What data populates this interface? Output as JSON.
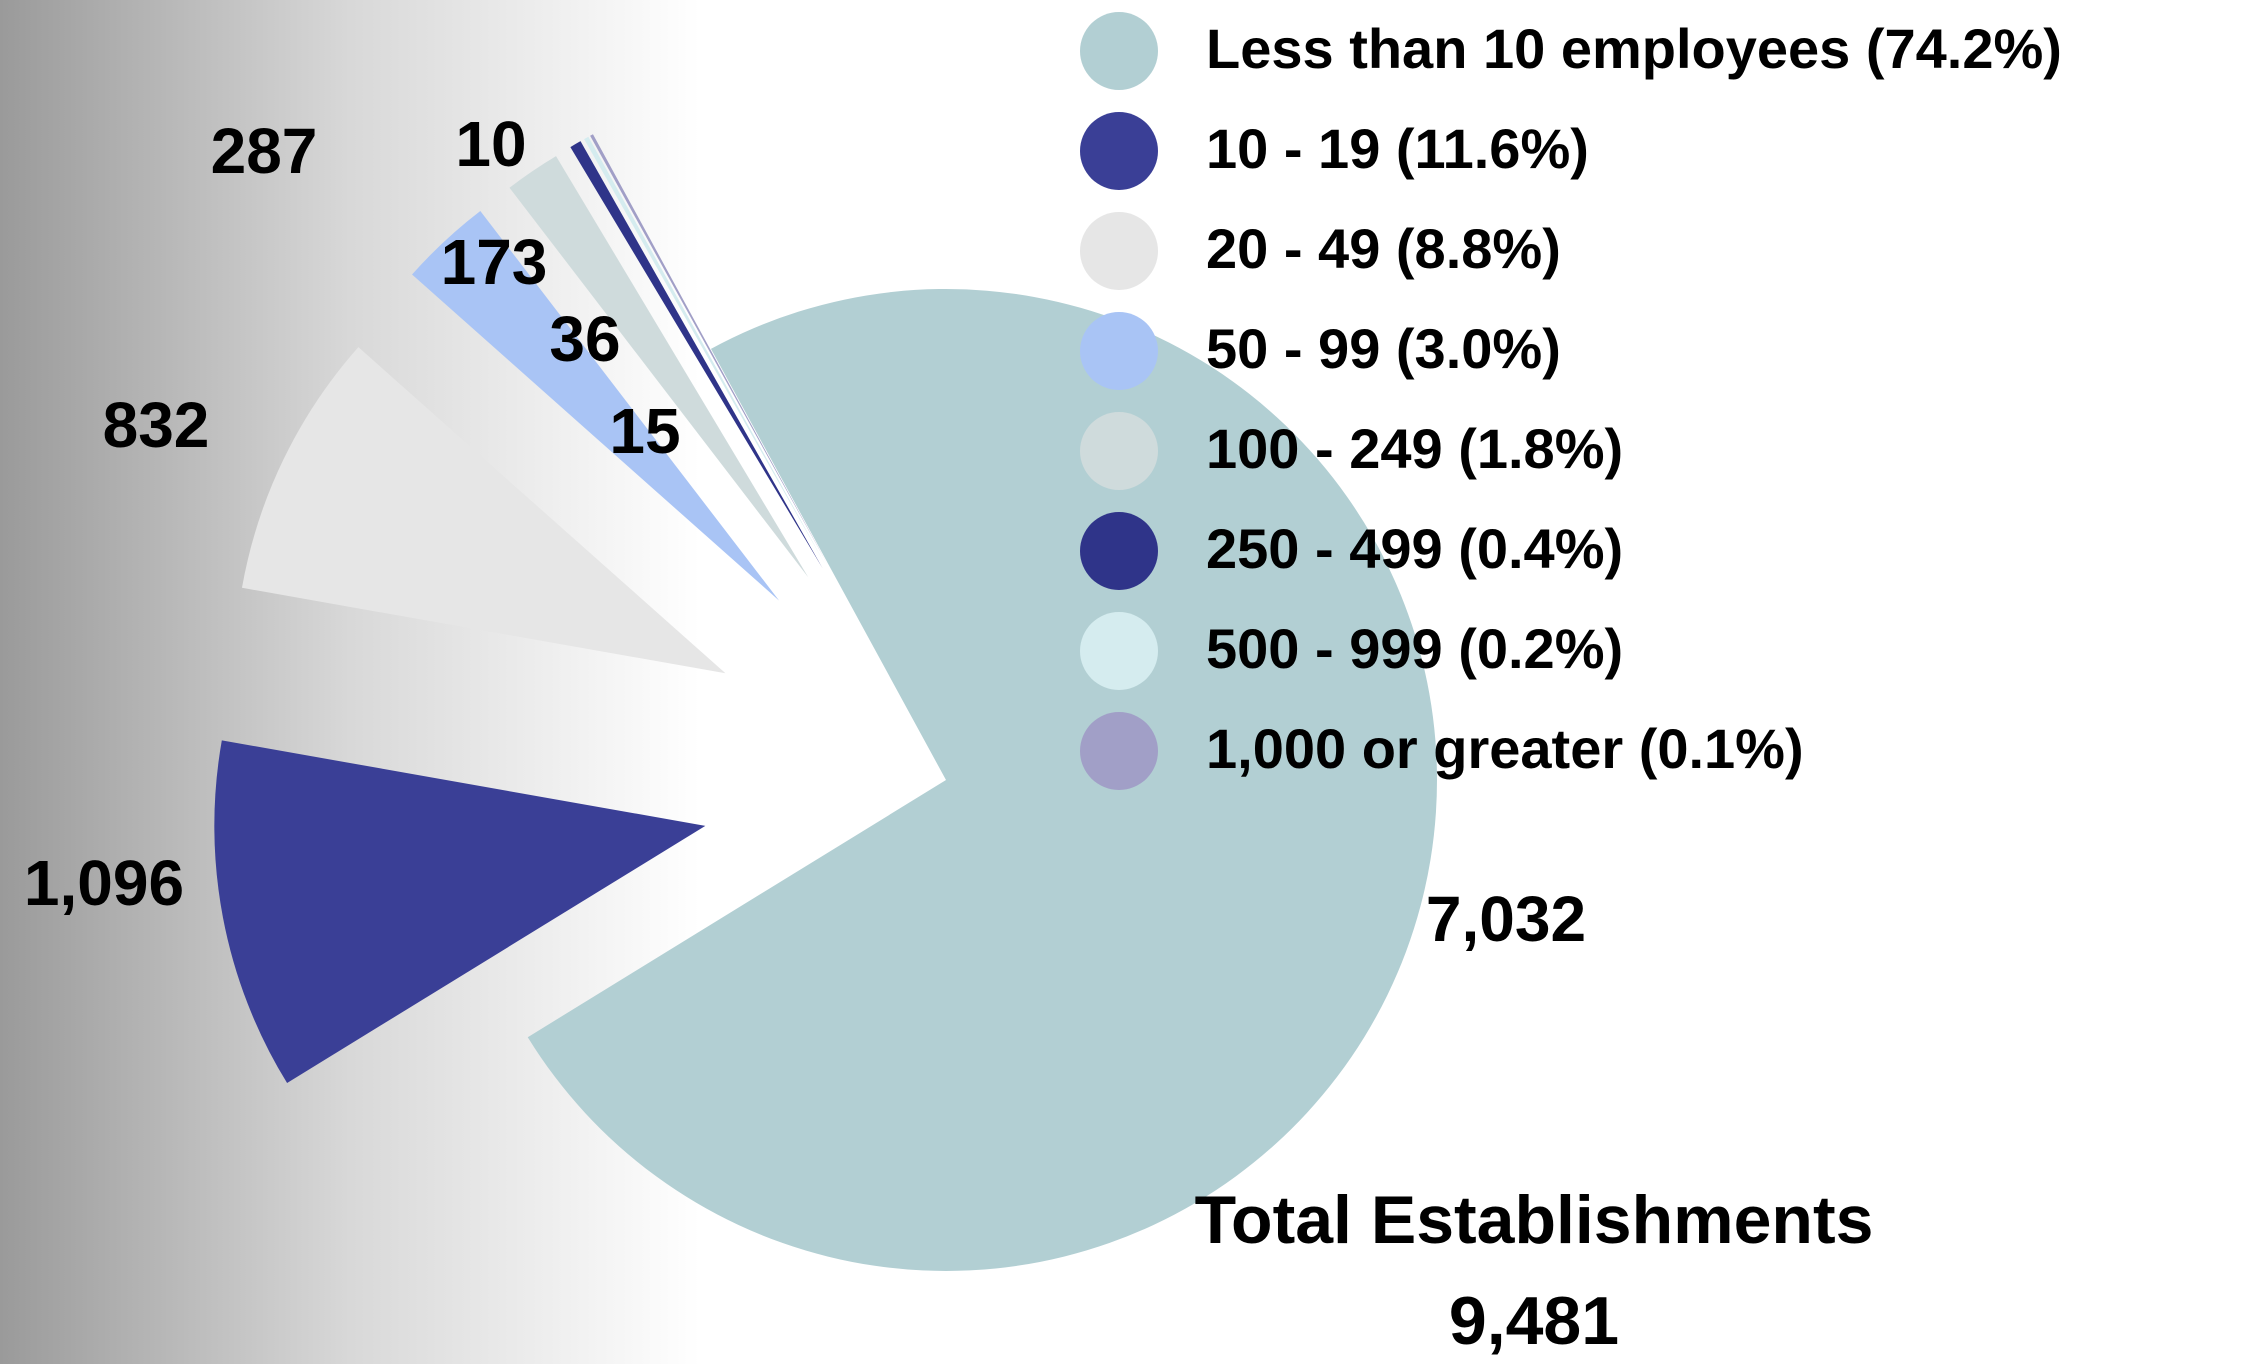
{
  "chart_data": {
    "type": "pie",
    "categories": [
      "Less than 10 employees (74.2%)",
      "10 - 19 (11.6%)",
      "20 - 49 (8.8%)",
      "50 - 99 (3.0%)",
      "100 - 249 (1.8%)",
      "250 - 499 (0.4%)",
      "500 - 999 (0.2%)",
      "1,000 or greater (0.1%)"
    ],
    "values": [
      7032,
      1096,
      832,
      287,
      173,
      36,
      15,
      10
    ],
    "value_labels": [
      "7,032",
      "1,096",
      "832",
      "287",
      "173",
      "36",
      "15",
      "10"
    ],
    "colors": [
      "#b2cfd3",
      "#3a3f96",
      "#e6e6e6",
      "#a9c4f5",
      "#cfdbdc",
      "#2f3489",
      "#d5ecef",
      "#a19fc7"
    ],
    "legend": "top-right",
    "annotations": [
      "Total Establishments",
      "9,481"
    ]
  }
}
